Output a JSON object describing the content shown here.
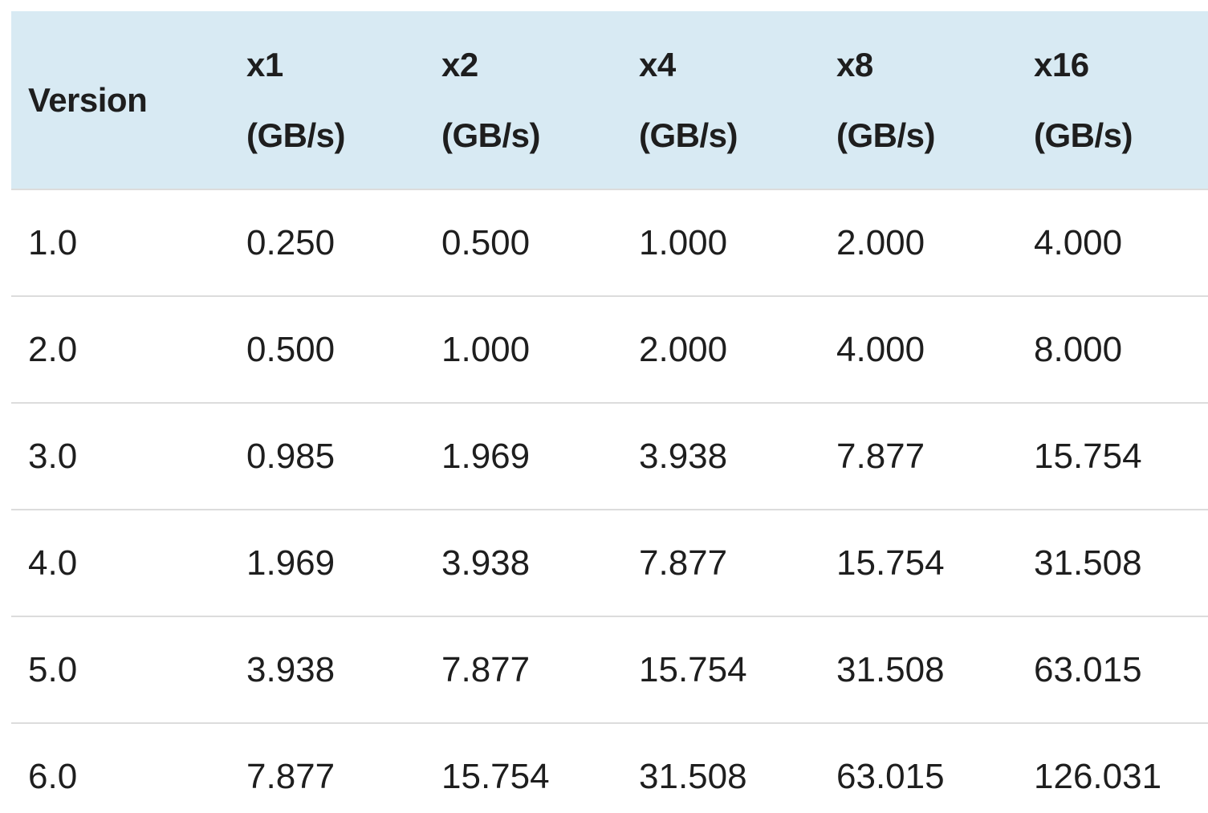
{
  "colors": {
    "page_background": "#ffffff",
    "header_background": "#d8eaf3",
    "row_divider": "#dcdcdc",
    "text": "#1e1e1e"
  },
  "table": {
    "header": {
      "version": "Version",
      "columns": [
        {
          "label": "x1",
          "unit": "(GB/s)"
        },
        {
          "label": "x2",
          "unit": "(GB/s)"
        },
        {
          "label": "x4",
          "unit": "(GB/s)"
        },
        {
          "label": "x8",
          "unit": "(GB/s)"
        },
        {
          "label": "x16",
          "unit": "(GB/s)"
        }
      ]
    },
    "rows": [
      {
        "version": "1.0",
        "values": [
          "0.250",
          "0.500",
          "1.000",
          "2.000",
          "4.000"
        ]
      },
      {
        "version": "2.0",
        "values": [
          "0.500",
          "1.000",
          "2.000",
          "4.000",
          "8.000"
        ]
      },
      {
        "version": "3.0",
        "values": [
          "0.985",
          "1.969",
          "3.938",
          "7.877",
          "15.754"
        ]
      },
      {
        "version": "4.0",
        "values": [
          "1.969",
          "3.938",
          "7.877",
          "15.754",
          "31.508"
        ]
      },
      {
        "version": "5.0",
        "values": [
          "3.938",
          "7.877",
          "15.754",
          "31.508",
          "63.015"
        ]
      },
      {
        "version": "6.0",
        "values": [
          "7.877",
          "15.754",
          "31.508",
          "63.015",
          "126.031"
        ]
      }
    ]
  },
  "chart_data": {
    "type": "table",
    "title": "",
    "columns": [
      "Version",
      "x1 (GB/s)",
      "x2 (GB/s)",
      "x4 (GB/s)",
      "x8 (GB/s)",
      "x16 (GB/s)"
    ],
    "rows": [
      [
        "1.0",
        0.25,
        0.5,
        1.0,
        2.0,
        4.0
      ],
      [
        "2.0",
        0.5,
        1.0,
        2.0,
        4.0,
        8.0
      ],
      [
        "3.0",
        0.985,
        1.969,
        3.938,
        7.877,
        15.754
      ],
      [
        "4.0",
        1.969,
        3.938,
        7.877,
        15.754,
        31.508
      ],
      [
        "5.0",
        3.938,
        7.877,
        15.754,
        31.508,
        63.015
      ],
      [
        "6.0",
        7.877,
        15.754,
        31.508,
        63.015,
        126.031
      ]
    ]
  }
}
